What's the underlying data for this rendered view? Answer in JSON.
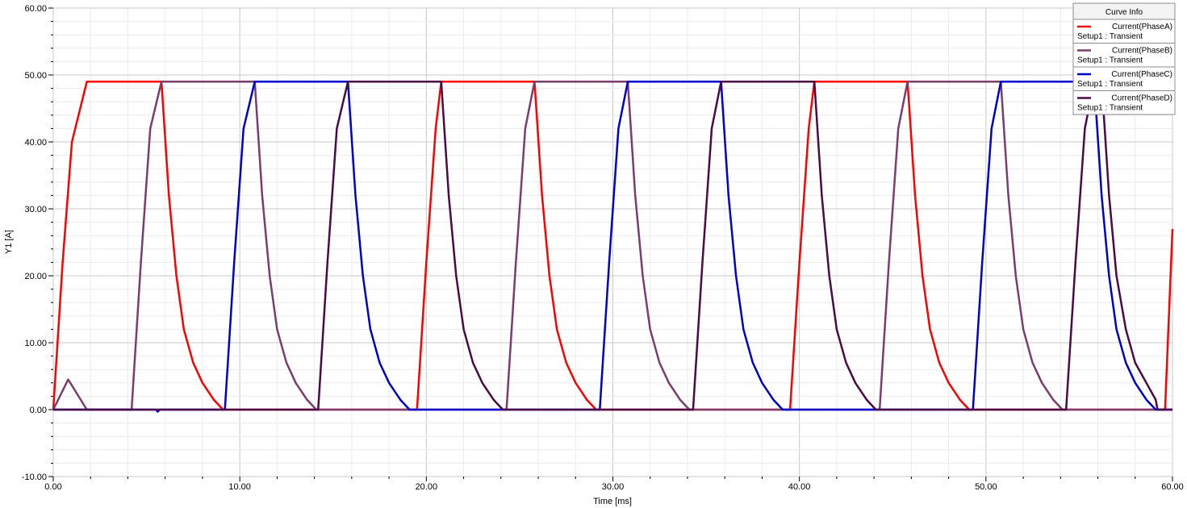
{
  "chart_data": {
    "type": "line",
    "xlabel": "Time [ms]",
    "ylabel": "Y1 [A]",
    "xlim": [
      0,
      60
    ],
    "ylim": [
      -10,
      60
    ],
    "x_ticks": [
      "0.00",
      "10.00",
      "20.00",
      "30.00",
      "40.00",
      "50.00",
      "60.00"
    ],
    "y_ticks": [
      "-10.00",
      "0.00",
      "10.00",
      "20.00",
      "30.00",
      "40.00",
      "50.00",
      "60.00"
    ],
    "grid": true,
    "legend": {
      "title": "Curve Info",
      "placement": "top-right",
      "entries": [
        {
          "name": "Current(PhaseA)",
          "setup": "Setup1 : Transient",
          "color": "#ff0000"
        },
        {
          "name": "Current(PhaseB)",
          "setup": "Setup1 : Transient",
          "color": "#7a3d6e"
        },
        {
          "name": "Current(PhaseC)",
          "setup": "Setup1 : Transient",
          "color": "#0000cc"
        },
        {
          "name": "Current(PhaseD)",
          "setup": "Setup1 : Transient",
          "color": "#4a0a45"
        }
      ]
    },
    "series": [
      {
        "name": "Current(PhaseA)",
        "color": "#ff0000",
        "x": [
          0,
          0.5,
          1.0,
          1.8,
          2.0,
          5.8,
          6.2,
          6.6,
          7.0,
          7.5,
          8.0,
          8.6,
          9.1,
          9.2,
          19.5,
          20.0,
          20.5,
          20.8,
          25.8,
          26.2,
          26.6,
          27.0,
          27.5,
          28.0,
          28.6,
          29.1,
          29.2,
          39.5,
          40.0,
          40.5,
          40.8,
          45.8,
          46.2,
          46.6,
          47.0,
          47.5,
          48.0,
          48.6,
          49.1,
          49.2,
          59.6,
          60.0
        ],
        "y": [
          0,
          22,
          40,
          49,
          49,
          49,
          32,
          20,
          12,
          7,
          4,
          1.5,
          0,
          0,
          0,
          22,
          42,
          49,
          49,
          32,
          20,
          12,
          7,
          4,
          1.5,
          0,
          0,
          0,
          22,
          42,
          49,
          49,
          32,
          20,
          12,
          7,
          4,
          1.5,
          0,
          0,
          0,
          27
        ]
      },
      {
        "name": "Current(PhaseB)",
        "color": "#7a3d6e",
        "x": [
          0,
          0.8,
          1.8,
          4.2,
          4.7,
          5.2,
          5.8,
          10.8,
          11.2,
          11.6,
          12.0,
          12.5,
          13.0,
          13.6,
          14.1,
          14.2,
          24.3,
          24.8,
          25.3,
          25.8,
          30.8,
          31.2,
          31.6,
          32.0,
          32.5,
          33.0,
          33.6,
          34.1,
          34.2,
          44.3,
          44.8,
          45.3,
          45.8,
          50.8,
          51.2,
          51.6,
          52.0,
          52.5,
          53.0,
          53.6,
          54.1,
          54.2,
          60.0
        ],
        "y": [
          0,
          4.5,
          0,
          0,
          22,
          42,
          49,
          49,
          32,
          20,
          12,
          7,
          4,
          1.5,
          0,
          0,
          0,
          22,
          42,
          49,
          49,
          32,
          20,
          12,
          7,
          4,
          1.5,
          0,
          0,
          0,
          22,
          42,
          49,
          49,
          32,
          20,
          12,
          7,
          4,
          1.5,
          0,
          0,
          0
        ]
      },
      {
        "name": "Current(PhaseC)",
        "color": "#0000cc",
        "x": [
          0,
          5.5,
          5.6,
          5.7,
          9.2,
          9.7,
          10.2,
          10.8,
          15.8,
          16.2,
          16.6,
          17.0,
          17.5,
          18.0,
          18.6,
          19.1,
          19.2,
          29.3,
          29.8,
          30.3,
          30.8,
          35.8,
          36.2,
          36.6,
          37.0,
          37.5,
          38.0,
          38.6,
          39.1,
          39.2,
          49.3,
          49.8,
          50.3,
          50.8,
          55.8,
          56.2,
          56.6,
          57.0,
          57.5,
          58.0,
          58.6,
          59.1,
          59.2,
          60.0
        ],
        "y": [
          0,
          0,
          -0.3,
          0,
          0,
          22,
          42,
          49,
          49,
          32,
          20,
          12,
          7,
          4,
          1.5,
          0,
          0,
          0,
          22,
          42,
          49,
          49,
          32,
          20,
          12,
          7,
          4,
          1.5,
          0,
          0,
          0,
          22,
          42,
          49,
          49,
          32,
          20,
          12,
          7,
          4,
          1.5,
          0,
          0,
          0
        ]
      },
      {
        "name": "Current(PhaseD)",
        "color": "#4a0a45",
        "x": [
          0,
          14.2,
          14.7,
          15.2,
          15.8,
          20.8,
          21.2,
          21.6,
          22.0,
          22.5,
          23.0,
          23.6,
          24.1,
          24.2,
          34.3,
          34.8,
          35.3,
          35.8,
          40.8,
          41.2,
          41.6,
          42.0,
          42.5,
          43.0,
          43.6,
          44.1,
          44.2,
          54.3,
          54.8,
          55.3,
          55.8,
          56.2,
          56.6,
          57.0,
          57.5,
          58.0,
          58.6,
          59.1,
          59.2,
          60.0
        ],
        "y": [
          0,
          0,
          22,
          42,
          49,
          49,
          32,
          20,
          12,
          7,
          4,
          1.5,
          0,
          0,
          0,
          22,
          42,
          49,
          49,
          32,
          20,
          12,
          7,
          4,
          1.5,
          0,
          0,
          0,
          22,
          42,
          49,
          49,
          32,
          20,
          12,
          7,
          4,
          1.5,
          0,
          0
        ]
      }
    ]
  }
}
